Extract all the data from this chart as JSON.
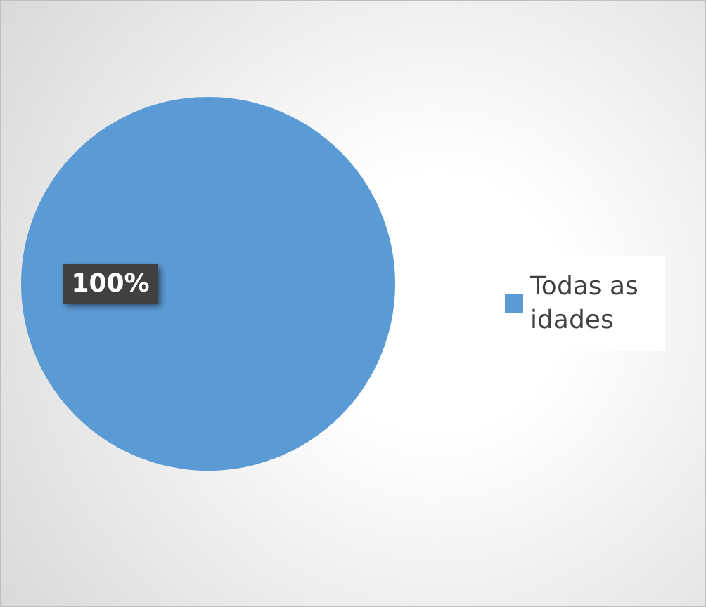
{
  "chart_data": {
    "type": "pie",
    "categories": [
      "Todas as idades"
    ],
    "values": [
      100
    ],
    "colors": [
      "#5b9bd5"
    ],
    "value_labels": [
      "100%"
    ],
    "legend": "right"
  }
}
